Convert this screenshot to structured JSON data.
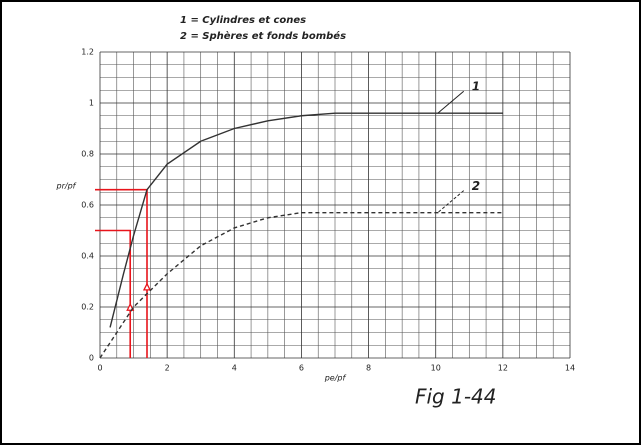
{
  "chart_data": {
    "type": "line",
    "legend": [
      "1 = Cylindres et cones",
      "2 = Sphères et fonds bombés"
    ],
    "xlabel": "pe/pf",
    "ylabel": "pr/pf",
    "caption": "Fig 1-44",
    "xlim": [
      0,
      14
    ],
    "ylim": [
      0,
      1.2
    ],
    "xticks": [
      0,
      2,
      4,
      6,
      8,
      10,
      12,
      14
    ],
    "yticks": [
      0,
      0.2,
      0.4,
      0.6,
      0.8,
      1,
      1.2
    ],
    "grid": true,
    "series": [
      {
        "name": "1",
        "color": "#333333",
        "dash": false,
        "x": [
          0.3,
          0.7,
          1,
          1.4,
          2,
          3,
          4,
          5,
          6,
          7,
          12
        ],
        "values": [
          0.12,
          0.33,
          0.48,
          0.66,
          0.76,
          0.85,
          0.9,
          0.93,
          0.95,
          0.96,
          0.96
        ],
        "callout": {
          "x": 10,
          "y": 0.96
        }
      },
      {
        "name": "2",
        "color": "#333333",
        "dash": true,
        "x": [
          0,
          1,
          2,
          3,
          4,
          5,
          6,
          7,
          12
        ],
        "values": [
          0,
          0.2,
          0.33,
          0.44,
          0.51,
          0.55,
          0.57,
          0.57,
          0.57
        ],
        "callout": {
          "x": 10,
          "y": 0.57
        }
      }
    ],
    "construction": {
      "color": "#e8141b",
      "x": [
        0.9,
        1.4
      ],
      "values": [
        0.5,
        0.66
      ]
    }
  }
}
